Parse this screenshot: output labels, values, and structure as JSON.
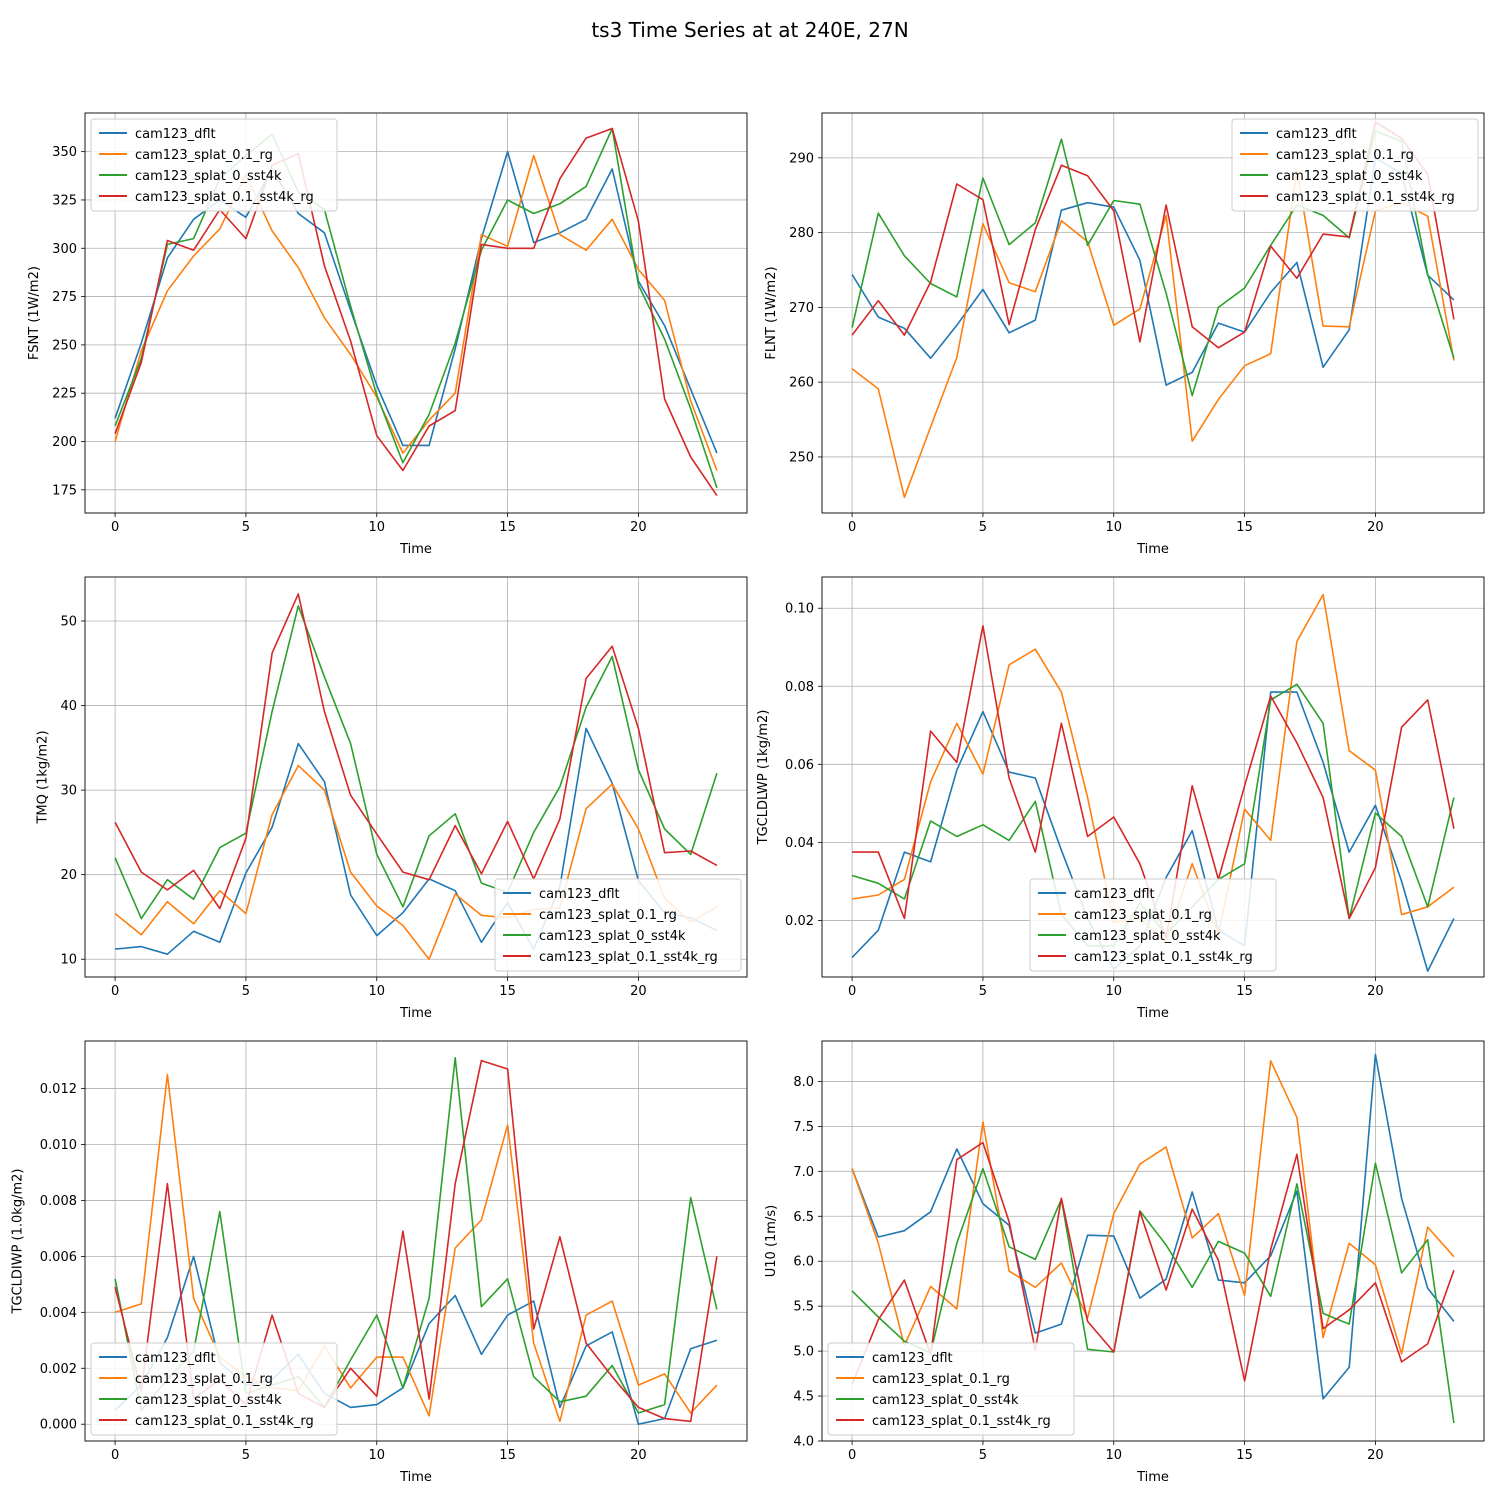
{
  "figure": {
    "title": "ts3 Time Series at at 240E, 27N"
  },
  "colors": {
    "blue": "#1f77b4",
    "orange": "#ff7f0e",
    "green": "#2ca02c",
    "red": "#d62728"
  },
  "chart_data": [
    {
      "type": "line",
      "ylabel": "FSNT (1W/m2)",
      "xlabel": "Time",
      "xlim": [
        -1.15,
        24.15
      ],
      "ylim": [
        370,
        163
      ],
      "xticks": [
        0,
        5,
        10,
        15,
        20
      ],
      "yticks": [
        175,
        200,
        225,
        250,
        275,
        300,
        325,
        350
      ],
      "yticklabels": [
        "175",
        "200",
        "225",
        "250",
        "275",
        "300",
        "325",
        "350"
      ],
      "grid": true,
      "legend": "upper left",
      "series": [
        {
          "name": "cam123_dflt",
          "color": "blue",
          "values": [
            212,
            251,
            295,
            315,
            325,
            316,
            341,
            318,
            308,
            268,
            229,
            198,
            198,
            248,
            305,
            350,
            303,
            308,
            315,
            341,
            283,
            260,
            227,
            194
          ]
        },
        {
          "name": "cam123_splat_0.1_rg",
          "color": "orange",
          "values": [
            200,
            247,
            278,
            296,
            310,
            338,
            309,
            290,
            264,
            245,
            223,
            194,
            211,
            225,
            307,
            301,
            348,
            307,
            299,
            315,
            289,
            273,
            221,
            185
          ]
        },
        {
          "name": "cam123_splat_0_sst4k",
          "color": "green",
          "values": [
            208,
            243,
            302,
            305,
            336,
            348,
            359,
            329,
            320,
            270,
            224,
            189,
            214,
            251,
            299,
            325,
            318,
            323,
            332,
            362,
            281,
            253,
            217,
            176
          ]
        },
        {
          "name": "cam123_splat_0.1_sst4k_rg",
          "color": "red",
          "values": [
            204,
            241,
            304,
            299,
            320,
            305,
            343,
            349,
            291,
            252,
            203,
            185,
            208,
            216,
            302,
            300,
            300,
            336,
            357,
            362,
            314,
            222,
            192,
            172
          ]
        }
      ]
    },
    {
      "type": "line",
      "ylabel": "FLNT (1W/m2)",
      "xlabel": "Time",
      "xlim": [
        -1.15,
        24.15
      ],
      "ylim": [
        296,
        242.5
      ],
      "xticks": [
        0,
        5,
        10,
        15,
        20
      ],
      "yticks": [
        250,
        260,
        270,
        280,
        290
      ],
      "yticklabels": [
        "250",
        "260",
        "270",
        "280",
        "290"
      ],
      "grid": true,
      "legend": "upper right",
      "series": [
        {
          "name": "cam123_dflt",
          "color": "blue",
          "values": [
            274.4,
            268.7,
            267.2,
            263.2,
            267.6,
            272.4,
            266.6,
            268.3,
            283,
            284,
            283.4,
            276.3,
            259.6,
            261.3,
            267.9,
            266.7,
            272,
            276,
            262,
            267,
            290,
            287.9,
            274.3,
            271
          ]
        },
        {
          "name": "cam123_splat_0.1_rg",
          "color": "orange",
          "values": [
            261.8,
            259.1,
            244.6,
            254,
            263.3,
            281.2,
            273.3,
            272.1,
            281.6,
            278.8,
            267.6,
            269.8,
            282.3,
            252.1,
            257.7,
            262.2,
            263.8,
            288.4,
            267.5,
            267.4,
            282.9,
            284,
            282.2,
            262.9
          ]
        },
        {
          "name": "cam123_splat_0_sst4k",
          "color": "green",
          "values": [
            267.3,
            282.6,
            276.9,
            273.2,
            271.4,
            287.3,
            278.4,
            281.3,
            292.5,
            278.3,
            284.3,
            283.8,
            271.9,
            258.2,
            270,
            272.6,
            278.3,
            283.7,
            282.3,
            279.3,
            293.6,
            292.2,
            274.4,
            263.2
          ]
        },
        {
          "name": "cam123_splat_0.1_sst4k_rg",
          "color": "red",
          "values": [
            266.3,
            270.9,
            266.3,
            273.4,
            286.5,
            284.4,
            267.7,
            280.4,
            289,
            287.6,
            282.9,
            265.4,
            283.7,
            267.4,
            264.6,
            266.7,
            278.2,
            273.9,
            279.8,
            279.4,
            294.8,
            292.6,
            287.8,
            268.4
          ]
        }
      ]
    },
    {
      "type": "line",
      "ylabel": "TMQ (1kg/m2)",
      "xlabel": "Time",
      "xlim": [
        -1.15,
        24.15
      ],
      "ylim": [
        55.2,
        7.9
      ],
      "xticks": [
        0,
        5,
        10,
        15,
        20
      ],
      "yticks": [
        10,
        20,
        30,
        40,
        50
      ],
      "yticklabels": [
        "10",
        "20",
        "30",
        "40",
        "50"
      ],
      "grid": true,
      "legend": "lower right",
      "series": [
        {
          "name": "cam123_dflt",
          "color": "blue",
          "values": [
            11.2,
            11.5,
            10.6,
            13.3,
            12,
            20.2,
            25.6,
            35.5,
            31,
            17.6,
            12.8,
            15.5,
            19.5,
            18.1,
            12,
            16.7,
            11.2,
            18.6,
            37.3,
            30.8,
            19.3,
            15.5,
            14.9,
            13.4
          ]
        },
        {
          "name": "cam123_splat_0.1_rg",
          "color": "orange",
          "values": [
            15.4,
            12.9,
            16.8,
            14.2,
            18.1,
            15.4,
            27.1,
            32.9,
            30,
            20.3,
            16.3,
            14,
            10,
            17.7,
            15.2,
            14.9,
            15.9,
            16.1,
            27.8,
            30.7,
            25.4,
            17.2,
            14.4,
            16.2
          ]
        },
        {
          "name": "cam123_splat_0_sst4k",
          "color": "green",
          "values": [
            22,
            14.8,
            19.4,
            17.1,
            23.2,
            24.9,
            39.3,
            51.8,
            43.4,
            35.5,
            22.4,
            16.2,
            24.6,
            27.2,
            19,
            17.9,
            25,
            30.4,
            39.8,
            45.8,
            32.4,
            25.4,
            22.4,
            32
          ]
        },
        {
          "name": "cam123_splat_0.1_sst4k_rg",
          "color": "red",
          "values": [
            26.2,
            20.3,
            18.2,
            20.5,
            16,
            24.3,
            46.2,
            53.2,
            39.3,
            29.4,
            24.8,
            20.3,
            19.4,
            25.8,
            20.1,
            26.3,
            19.5,
            26.6,
            43.2,
            47,
            37.3,
            22.6,
            22.8,
            21.1
          ]
        }
      ]
    },
    {
      "type": "line",
      "ylabel": "TGCLDLWP (1kg/m2)",
      "xlabel": "Time",
      "xlim": [
        -1.15,
        24.15
      ],
      "ylim": [
        0.108,
        0.0055
      ],
      "xticks": [
        0,
        5,
        10,
        15,
        20
      ],
      "yticks": [
        0.02,
        0.04,
        0.06,
        0.08,
        0.1
      ],
      "yticklabels": [
        "0.02",
        "0.04",
        "0.06",
        "0.08",
        "0.10"
      ],
      "grid": true,
      "legend": "lower center",
      "series": [
        {
          "name": "cam123_dflt",
          "color": "blue",
          "values": [
            0.0105,
            0.0175,
            0.0375,
            0.035,
            0.0585,
            0.0735,
            0.058,
            0.0565,
            0.038,
            0.0205,
            0.0075,
            0.0135,
            0.031,
            0.043,
            0.0175,
            0.0135,
            0.0785,
            0.0785,
            0.0605,
            0.0375,
            0.0495,
            0.03,
            0.007,
            0.0205
          ]
        },
        {
          "name": "cam123_splat_0.1_rg",
          "color": "orange",
          "values": [
            0.0255,
            0.0265,
            0.0305,
            0.0555,
            0.0705,
            0.0575,
            0.0855,
            0.0895,
            0.0785,
            0.0515,
            0.0195,
            0.0205,
            0.0145,
            0.0345,
            0.0165,
            0.0485,
            0.0405,
            0.0915,
            0.1035,
            0.0635,
            0.0585,
            0.0215,
            0.0235,
            0.0285
          ]
        },
        {
          "name": "cam123_splat_0_sst4k",
          "color": "green",
          "values": [
            0.0315,
            0.0295,
            0.0255,
            0.0455,
            0.0415,
            0.0445,
            0.0405,
            0.0505,
            0.0215,
            0.0135,
            0.0135,
            0.0245,
            0.0165,
            0.0235,
            0.0305,
            0.0345,
            0.0765,
            0.0805,
            0.0705,
            0.0205,
            0.0475,
            0.0415,
            0.0235,
            0.0515
          ]
        },
        {
          "name": "cam123_splat_0.1_sst4k_rg",
          "color": "red",
          "values": [
            0.0375,
            0.0375,
            0.0205,
            0.0685,
            0.0605,
            0.0955,
            0.0565,
            0.0375,
            0.0705,
            0.0415,
            0.0465,
            0.0345,
            0.0155,
            0.0545,
            0.0305,
            0.0545,
            0.0775,
            0.0655,
            0.0515,
            0.0205,
            0.0335,
            0.0695,
            0.0765,
            0.0435
          ]
        }
      ]
    },
    {
      "type": "line",
      "ylabel": "TGCLDIWP (1.0kg/m2)",
      "xlabel": "Time",
      "xlim": [
        -1.15,
        24.15
      ],
      "ylim": [
        0.0137,
        -0.0006
      ],
      "xticks": [
        0,
        5,
        10,
        15,
        20
      ],
      "yticks": [
        0,
        0.002,
        0.004,
        0.006,
        0.008,
        0.01,
        0.012
      ],
      "yticklabels": [
        "0.000",
        "0.002",
        "0.004",
        "0.006",
        "0.008",
        "0.010",
        "0.012"
      ],
      "grid": true,
      "legend": "lower left",
      "series": [
        {
          "name": "cam123_dflt",
          "color": "blue",
          "values": [
            0.0005,
            0.0014,
            0.0031,
            0.006,
            0.0022,
            0.0014,
            0.0016,
            0.0025,
            0.0011,
            0.0006,
            0.0007,
            0.0013,
            0.0036,
            0.0046,
            0.0025,
            0.0039,
            0.0044,
            0.0006,
            0.0028,
            0.0033,
            0.0,
            0.0002,
            0.0027,
            0.003
          ]
        },
        {
          "name": "cam123_splat_0.1_rg",
          "color": "orange",
          "values": [
            0.004,
            0.0043,
            0.0125,
            0.0045,
            0.0024,
            0.0017,
            0.0013,
            0.0012,
            0.0028,
            0.0013,
            0.0024,
            0.0024,
            0.0003,
            0.0063,
            0.0073,
            0.0107,
            0.0029,
            0.0001,
            0.0039,
            0.0044,
            0.0014,
            0.0018,
            0.0004,
            0.0014
          ]
        },
        {
          "name": "cam123_splat_0_sst4k",
          "color": "green",
          "values": [
            0.0052,
            0.0005,
            0.0016,
            0.0026,
            0.0076,
            0.0011,
            0.0014,
            0.0017,
            0.0006,
            0.0023,
            0.0039,
            0.0013,
            0.0045,
            0.0131,
            0.0042,
            0.0052,
            0.0017,
            0.0008,
            0.001,
            0.0021,
            0.0004,
            0.0007,
            0.0081,
            0.0041
          ]
        },
        {
          "name": "cam123_splat_0.1_sst4k_rg",
          "color": "red",
          "values": [
            0.0049,
            0.0012,
            0.0086,
            0.0009,
            0.0016,
            0.0007,
            0.0039,
            0.0011,
            0.0006,
            0.002,
            0.001,
            0.0069,
            0.0009,
            0.0086,
            0.013,
            0.0127,
            0.0034,
            0.0067,
            0.0029,
            0.0017,
            0.0006,
            0.0002,
            0.0001,
            0.006
          ]
        }
      ]
    },
    {
      "type": "line",
      "ylabel": "U10 (1m/s)",
      "xlabel": "Time",
      "xlim": [
        -1.15,
        24.15
      ],
      "ylim": [
        8.45,
        4.0
      ],
      "xticks": [
        0,
        5,
        10,
        15,
        20
      ],
      "yticks": [
        4.0,
        4.5,
        5.0,
        5.5,
        6.0,
        6.5,
        7.0,
        7.5,
        8.0
      ],
      "yticklabels": [
        "4.0",
        "4.5",
        "5.0",
        "5.5",
        "6.0",
        "6.5",
        "7.0",
        "7.5",
        "8.0"
      ],
      "grid": true,
      "legend": "lower left",
      "series": [
        {
          "name": "cam123_dflt",
          "color": "blue",
          "values": [
            7.03,
            6.27,
            6.34,
            6.55,
            7.25,
            6.64,
            6.4,
            5.2,
            5.3,
            6.29,
            6.28,
            5.59,
            5.8,
            6.77,
            5.79,
            5.76,
            6.06,
            6.78,
            4.47,
            4.82,
            8.3,
            6.7,
            5.7,
            5.33
          ]
        },
        {
          "name": "cam123_splat_0.1_rg",
          "color": "orange",
          "values": [
            7.03,
            6.2,
            5.06,
            5.72,
            5.47,
            7.55,
            5.89,
            5.71,
            5.98,
            5.37,
            6.53,
            7.08,
            7.27,
            6.26,
            6.53,
            5.62,
            8.23,
            7.6,
            5.15,
            6.2,
            5.96,
            4.97,
            6.38,
            6.05
          ]
        },
        {
          "name": "cam123_splat_0_sst4k",
          "color": "green",
          "values": [
            5.67,
            5.38,
            5.11,
            4.98,
            6.2,
            7.03,
            6.16,
            6.02,
            6.69,
            5.02,
            4.99,
            6.56,
            6.18,
            5.71,
            6.22,
            6.09,
            5.61,
            6.86,
            5.42,
            5.3,
            7.09,
            5.87,
            6.24,
            4.2
          ]
        },
        {
          "name": "cam123_splat_0.1_sst4k_rg",
          "color": "red",
          "values": [
            4.63,
            5.35,
            5.79,
            4.96,
            7.13,
            7.32,
            6.44,
            5.01,
            6.7,
            5.33,
            4.99,
            6.55,
            5.68,
            6.58,
            6.01,
            4.67,
            6.13,
            7.19,
            5.25,
            5.46,
            5.76,
            4.88,
            5.08,
            5.9
          ]
        }
      ]
    }
  ]
}
